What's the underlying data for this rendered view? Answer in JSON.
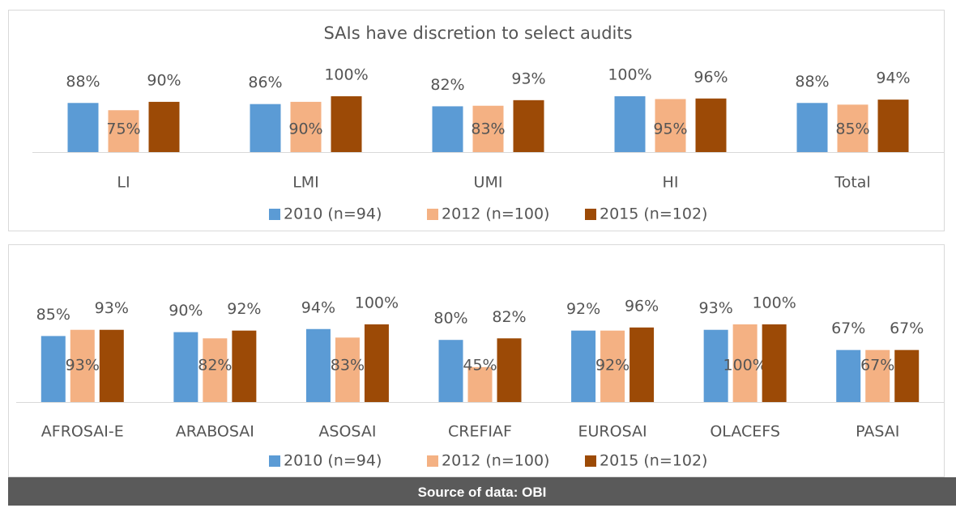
{
  "chart_data": [
    {
      "type": "bar",
      "title": "SAIs have discretion to select audits",
      "categories": [
        "LI",
        "LMI",
        "UMI",
        "HI",
        "Total"
      ],
      "series": [
        {
          "name": "2010 (n=94)",
          "color": "#5b9bd5",
          "values": [
            88,
            86,
            82,
            100,
            88
          ],
          "value_labels": [
            "88%",
            "86%",
            "82%",
            "100%",
            "88%"
          ]
        },
        {
          "name": "2012 (n=100)",
          "color": "#f4b183",
          "values": [
            75,
            90,
            83,
            95,
            85
          ],
          "value_labels": [
            "75%",
            "90%",
            "83%",
            "95%",
            "85%"
          ]
        },
        {
          "name": "2015 (n=102)",
          "color": "#9c4a06",
          "values": [
            90,
            100,
            93,
            96,
            94
          ],
          "value_labels": [
            "90%",
            "100%",
            "93%",
            "96%",
            "94%"
          ]
        }
      ],
      "ylim": [
        0,
        100
      ]
    },
    {
      "type": "bar",
      "categories": [
        "AFROSAI-E",
        "ARABOSAI",
        "ASOSAI",
        "CREFIAF",
        "EUROSAI",
        "OLACEFS",
        "PASAI"
      ],
      "series": [
        {
          "name": "2010 (n=94)",
          "color": "#5b9bd5",
          "values": [
            85,
            90,
            94,
            80,
            92,
            93,
            67
          ],
          "value_labels": [
            "85%",
            "90%",
            "94%",
            "80%",
            "92%",
            "93%",
            "67%"
          ]
        },
        {
          "name": "2012 (n=100)",
          "color": "#f4b183",
          "values": [
            93,
            82,
            83,
            45,
            92,
            100,
            67
          ],
          "value_labels": [
            "93%",
            "82%",
            "83%",
            "45%",
            "92%",
            "100%",
            "67%"
          ]
        },
        {
          "name": "2015 (n=102)",
          "color": "#9c4a06",
          "values": [
            93,
            92,
            100,
            82,
            96,
            100,
            67
          ],
          "value_labels": [
            "93%",
            "92%",
            "100%",
            "82%",
            "96%",
            "100%",
            "67%"
          ]
        }
      ],
      "ylim": [
        0,
        100
      ]
    }
  ],
  "source": "Source of data: OBI"
}
